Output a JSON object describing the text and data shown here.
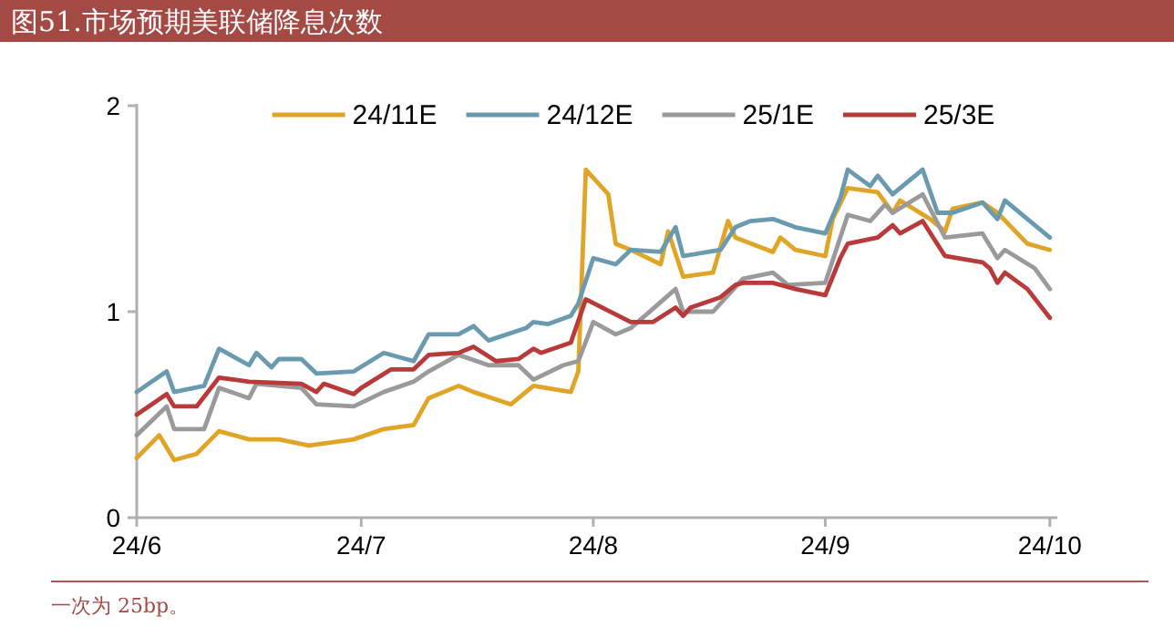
{
  "chart_data": {
    "type": "line",
    "title": "图51.市场预期美联储降息次数",
    "annotations": [
      "一次为 25bp。"
    ],
    "xlim": [
      "--06-01",
      "--10-02"
    ],
    "xticks": [
      {
        "value": "--06-01",
        "label": "24/6"
      },
      {
        "value": "--07-01",
        "label": "24/7"
      },
      {
        "value": "--08-01",
        "label": "24/8"
      },
      {
        "value": "--09-01",
        "label": "24/9"
      },
      {
        "value": "--10-01",
        "label": "24/10"
      }
    ],
    "ylim": [
      0,
      2
    ],
    "yticks": [
      0,
      1,
      2
    ],
    "legend": "top",
    "grid": false,
    "marker": "none",
    "line_style": "solid",
    "series": [
      {
        "name": "24/11E",
        "color": "#e0a526",
        "x": [
          "--06-01",
          "--06-04",
          "--06-06",
          "--06-09",
          "--06-12",
          "--06-16",
          "--06-20",
          "--06-24",
          "--06-30",
          "--07-04",
          "--07-08",
          "--07-10",
          "--07-14",
          "--07-16",
          "--07-21",
          "--07-24",
          "--07-29",
          "--07-30",
          "--07-31",
          "--08-03",
          "--08-04",
          "--08-06",
          "--08-10",
          "--08-11",
          "--08-13",
          "--08-17",
          "--08-19",
          "--08-20",
          "--08-25",
          "--08-26",
          "--08-28",
          "--09-01",
          "--09-02",
          "--09-04",
          "--09-08",
          "--09-10",
          "--09-11",
          "--09-15",
          "--09-17",
          "--09-18",
          "--09-22",
          "--09-24",
          "--09-28",
          "--10-01"
        ],
        "values": [
          0.29,
          0.4,
          0.28,
          0.31,
          0.42,
          0.38,
          0.38,
          0.35,
          0.38,
          0.43,
          0.45,
          0.58,
          0.64,
          0.61,
          0.55,
          0.64,
          0.61,
          0.71,
          1.69,
          1.57,
          1.33,
          1.3,
          1.23,
          1.39,
          1.17,
          1.19,
          1.44,
          1.36,
          1.29,
          1.36,
          1.3,
          1.27,
          1.45,
          1.6,
          1.58,
          1.48,
          1.54,
          1.45,
          1.39,
          1.5,
          1.53,
          1.48,
          1.33,
          1.3
        ]
      },
      {
        "name": "24/12E",
        "color": "#6a9ab0",
        "x": [
          "--06-01",
          "--06-05",
          "--06-06",
          "--06-10",
          "--06-12",
          "--06-16",
          "--06-17",
          "--06-19",
          "--06-20",
          "--06-23",
          "--06-25",
          "--06-30",
          "--07-04",
          "--07-08",
          "--07-10",
          "--07-14",
          "--07-16",
          "--07-18",
          "--07-23",
          "--07-24",
          "--07-26",
          "--07-29",
          "--07-30",
          "--08-01",
          "--08-04",
          "--08-06",
          "--08-10",
          "--08-12",
          "--08-13",
          "--08-18",
          "--08-20",
          "--08-22",
          "--08-25",
          "--08-28",
          "--09-01",
          "--09-03",
          "--09-04",
          "--09-07",
          "--09-08",
          "--09-10",
          "--09-14",
          "--09-16",
          "--09-18",
          "--09-22",
          "--09-24",
          "--09-25",
          "--09-29",
          "--10-01"
        ],
        "values": [
          0.61,
          0.71,
          0.61,
          0.64,
          0.82,
          0.74,
          0.8,
          0.73,
          0.77,
          0.77,
          0.7,
          0.71,
          0.8,
          0.76,
          0.89,
          0.89,
          0.93,
          0.86,
          0.92,
          0.95,
          0.94,
          0.98,
          1.04,
          1.26,
          1.23,
          1.3,
          1.29,
          1.41,
          1.27,
          1.3,
          1.41,
          1.44,
          1.45,
          1.41,
          1.38,
          1.55,
          1.69,
          1.61,
          1.66,
          1.57,
          1.69,
          1.48,
          1.48,
          1.53,
          1.45,
          1.54,
          1.42,
          1.36
        ]
      },
      {
        "name": "25/1E",
        "color": "#9a9a9a",
        "x": [
          "--06-01",
          "--06-05",
          "--06-06",
          "--06-10",
          "--06-12",
          "--06-16",
          "--06-17",
          "--06-23",
          "--06-25",
          "--06-30",
          "--07-04",
          "--07-08",
          "--07-10",
          "--07-14",
          "--07-18",
          "--07-22",
          "--07-24",
          "--07-28",
          "--07-30",
          "--08-01",
          "--08-04",
          "--08-06",
          "--08-12",
          "--08-13",
          "--08-17",
          "--08-21",
          "--08-25",
          "--08-27",
          "--09-01",
          "--09-04",
          "--09-07",
          "--09-09",
          "--09-10",
          "--09-14",
          "--09-17",
          "--09-22",
          "--09-24",
          "--09-25",
          "--09-29",
          "--10-01"
        ],
        "values": [
          0.4,
          0.54,
          0.43,
          0.43,
          0.63,
          0.58,
          0.65,
          0.63,
          0.55,
          0.54,
          0.61,
          0.66,
          0.71,
          0.79,
          0.74,
          0.74,
          0.67,
          0.74,
          0.76,
          0.95,
          0.89,
          0.92,
          1.11,
          1.0,
          1.0,
          1.16,
          1.19,
          1.13,
          1.14,
          1.47,
          1.44,
          1.52,
          1.48,
          1.57,
          1.36,
          1.38,
          1.26,
          1.3,
          1.21,
          1.11
        ]
      },
      {
        "name": "25/3E",
        "color": "#b83a3a",
        "x": [
          "--06-01",
          "--06-05",
          "--06-06",
          "--06-09",
          "--06-12",
          "--06-16",
          "--06-23",
          "--06-25",
          "--06-26",
          "--06-30",
          "--07-01",
          "--07-05",
          "--07-08",
          "--07-10",
          "--07-14",
          "--07-16",
          "--07-19",
          "--07-22",
          "--07-24",
          "--07-25",
          "--07-29",
          "--07-31",
          "--08-06",
          "--08-09",
          "--08-12",
          "--08-13",
          "--08-14",
          "--08-18",
          "--08-20",
          "--08-21",
          "--08-25",
          "--08-28",
          "--09-01",
          "--09-03",
          "--09-04",
          "--09-08",
          "--09-10",
          "--09-11",
          "--09-14",
          "--09-17",
          "--09-22",
          "--09-23",
          "--09-24",
          "--09-25",
          "--09-28",
          "--10-01"
        ],
        "values": [
          0.5,
          0.6,
          0.54,
          0.54,
          0.68,
          0.66,
          0.65,
          0.61,
          0.65,
          0.6,
          0.63,
          0.72,
          0.72,
          0.79,
          0.8,
          0.83,
          0.76,
          0.77,
          0.82,
          0.8,
          0.85,
          1.06,
          0.95,
          0.95,
          1.02,
          0.98,
          1.02,
          1.07,
          1.13,
          1.14,
          1.14,
          1.11,
          1.08,
          1.26,
          1.33,
          1.36,
          1.42,
          1.38,
          1.44,
          1.27,
          1.24,
          1.21,
          1.14,
          1.19,
          1.11,
          0.97
        ]
      }
    ]
  }
}
